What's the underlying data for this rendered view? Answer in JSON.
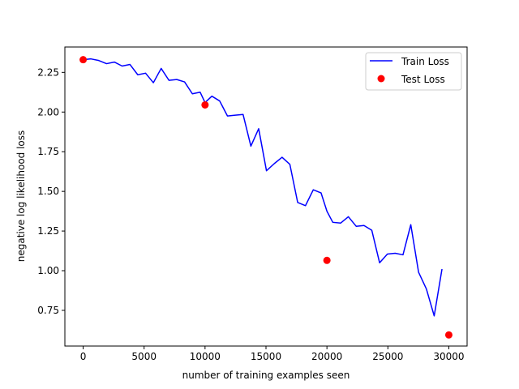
{
  "chart_data": {
    "type": "line",
    "title": "",
    "xlabel": "number of training examples seen",
    "ylabel": "negative log likelihood loss",
    "xlim": [
      -1500,
      31500
    ],
    "ylim": [
      0.525,
      2.41
    ],
    "xticks": [
      0,
      5000,
      10000,
      15000,
      20000,
      25000,
      30000
    ],
    "xtick_labels": [
      "0",
      "5000",
      "10000",
      "15000",
      "20000",
      "25000",
      "30000"
    ],
    "yticks": [
      0.75,
      1.0,
      1.25,
      1.5,
      1.75,
      2.0,
      2.25
    ],
    "ytick_labels": [
      "0.75",
      "1.00",
      "1.25",
      "1.50",
      "1.75",
      "2.00",
      "2.25"
    ],
    "grid": false,
    "legend_position": "top-right",
    "series": [
      {
        "name": "Train Loss",
        "kind": "line",
        "color": "#0000ff",
        "points": [
          [
            0,
            2.33
          ],
          [
            640,
            2.335
          ],
          [
            1280,
            2.325
          ],
          [
            1920,
            2.305
          ],
          [
            2560,
            2.315
          ],
          [
            3200,
            2.29
          ],
          [
            3840,
            2.3
          ],
          [
            4480,
            2.235
          ],
          [
            5120,
            2.245
          ],
          [
            5760,
            2.185
          ],
          [
            6400,
            2.275
          ],
          [
            7040,
            2.2
          ],
          [
            7680,
            2.205
          ],
          [
            8320,
            2.19
          ],
          [
            8960,
            2.115
          ],
          [
            9600,
            2.125
          ],
          [
            10000,
            2.06
          ],
          [
            10560,
            2.1
          ],
          [
            11200,
            2.07
          ],
          [
            11840,
            1.975
          ],
          [
            12480,
            1.98
          ],
          [
            13120,
            1.985
          ],
          [
            13760,
            1.785
          ],
          [
            14400,
            1.895
          ],
          [
            15040,
            1.63
          ],
          [
            15680,
            1.675
          ],
          [
            16320,
            1.715
          ],
          [
            16960,
            1.67
          ],
          [
            17600,
            1.43
          ],
          [
            18240,
            1.41
          ],
          [
            18880,
            1.51
          ],
          [
            19520,
            1.49
          ],
          [
            20000,
            1.375
          ],
          [
            20480,
            1.305
          ],
          [
            21120,
            1.3
          ],
          [
            21760,
            1.34
          ],
          [
            22400,
            1.28
          ],
          [
            23040,
            1.285
          ],
          [
            23680,
            1.255
          ],
          [
            24320,
            1.05
          ],
          [
            24960,
            1.105
          ],
          [
            25600,
            1.11
          ],
          [
            26240,
            1.1
          ],
          [
            26880,
            1.29
          ],
          [
            27520,
            0.99
          ],
          [
            28160,
            0.885
          ],
          [
            28800,
            0.715
          ],
          [
            29440,
            1.01
          ]
        ]
      },
      {
        "name": "Test Loss",
        "kind": "scatter",
        "color": "#ff0000",
        "points": [
          [
            0,
            2.33
          ],
          [
            10000,
            2.045
          ],
          [
            20000,
            1.065
          ],
          [
            30000,
            0.595
          ]
        ]
      }
    ]
  }
}
